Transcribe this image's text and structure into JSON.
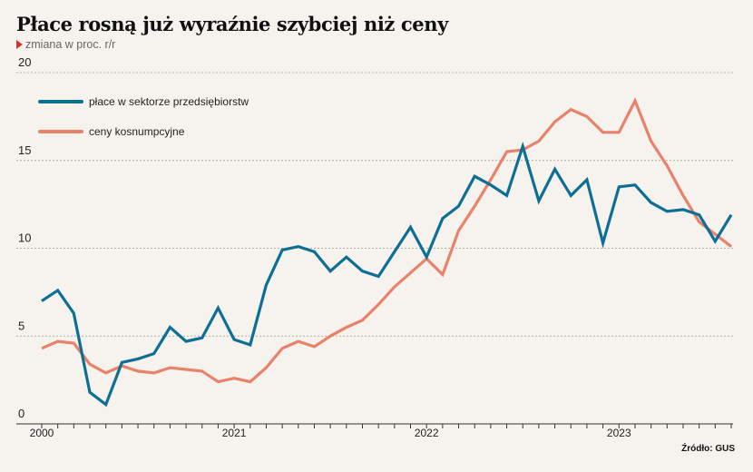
{
  "title": "Płace rosną już wyraźnie szybciej niż ceny",
  "subtitle": "zmiana w proc. r/r",
  "source": "Źródło: GUS",
  "colors": {
    "wages": "#0e6f95",
    "prices": "#e9826b",
    "grid": "#b5b0a8",
    "axis": "#333333",
    "subtitle_arrow": "#d0352b"
  },
  "chart_data": {
    "type": "line",
    "title": "Płace rosną już wyraźnie szybciej niż ceny",
    "ylabel": "zmiana w proc. r/r",
    "xlabel": "",
    "ylim": [
      0,
      20
    ],
    "yticks": [
      "0",
      "5",
      "10",
      "15",
      "20"
    ],
    "xticks": [
      "2000",
      "2021",
      "2022",
      "2023"
    ],
    "xtick_month_index": [
      0,
      12,
      24,
      36
    ],
    "x_period_count": 44,
    "grid": "horizontal dashed",
    "legend_position": "top-left",
    "series": [
      {
        "name": "płace w sektorze przedsiębiorstw",
        "color": "#0e6f95",
        "values": [
          7.0,
          7.6,
          6.3,
          1.8,
          1.1,
          3.5,
          3.7,
          4.0,
          5.5,
          4.7,
          4.9,
          6.6,
          4.8,
          4.5,
          7.9,
          9.9,
          10.1,
          9.8,
          8.7,
          9.5,
          8.7,
          8.4,
          9.8,
          11.2,
          9.5,
          11.7,
          12.4,
          14.1,
          13.6,
          13.0,
          15.8,
          12.7,
          14.5,
          13.0,
          13.9,
          10.3,
          13.5,
          13.6,
          12.6,
          12.1,
          12.2,
          11.9,
          10.4,
          11.9
        ]
      },
      {
        "name": "ceny kosnumpcyjne",
        "color": "#e9826b",
        "values": [
          4.3,
          4.7,
          4.6,
          3.4,
          2.9,
          3.3,
          3.0,
          2.9,
          3.2,
          3.1,
          3.0,
          2.4,
          2.6,
          2.4,
          3.2,
          4.3,
          4.7,
          4.4,
          5.0,
          5.5,
          5.9,
          6.8,
          7.8,
          8.6,
          9.4,
          8.5,
          11.0,
          12.4,
          13.9,
          15.5,
          15.6,
          16.1,
          17.2,
          17.9,
          17.5,
          16.6,
          16.6,
          18.4,
          16.1,
          14.7,
          13.0,
          11.5,
          10.8,
          10.1
        ]
      }
    ]
  }
}
